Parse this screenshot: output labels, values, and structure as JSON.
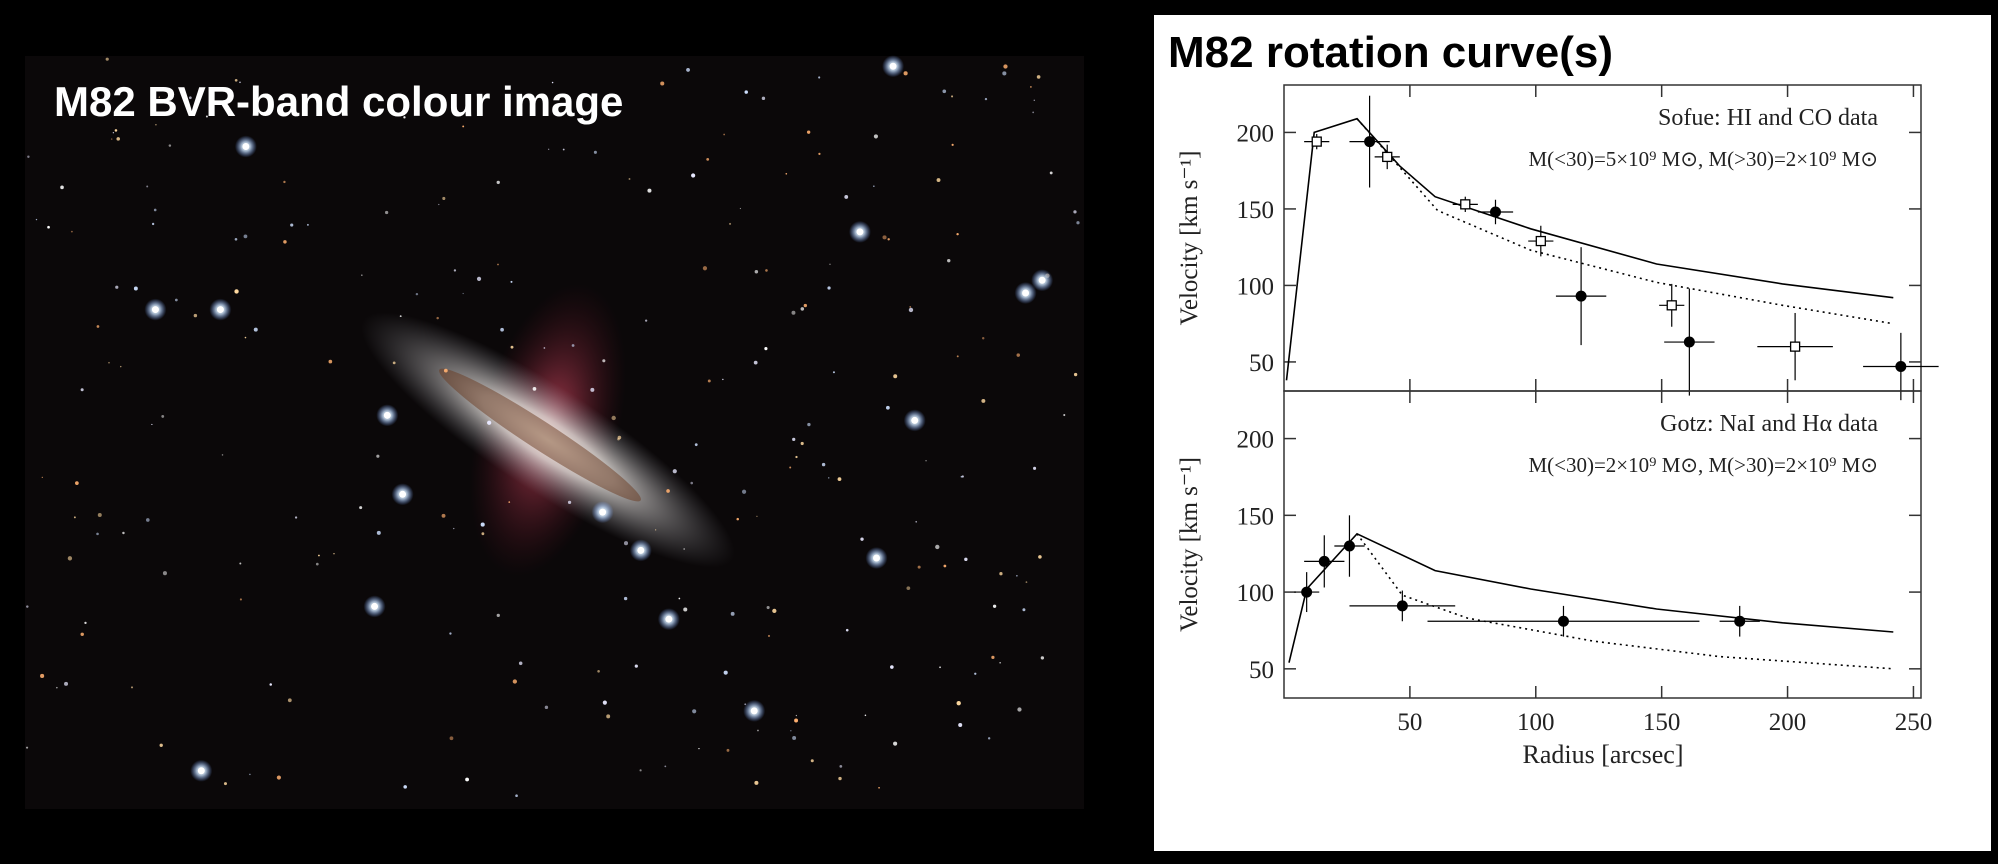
{
  "slide": {
    "image_title": "M82 BVR-band colour image",
    "title": "M82 rotation curve(s)"
  },
  "chart_data": [
    {
      "type": "scatter",
      "annotations": [
        "Sofue: HI and CO data",
        "M(<30)=5×10⁹ M⊙, M(>30)=2×10⁹ M⊙"
      ],
      "ylabel": "Velocity [km s⁻¹]",
      "xlim": [
        0,
        253
      ],
      "ylim": [
        31,
        231
      ],
      "xticks": [
        50,
        100,
        150,
        200,
        250
      ],
      "yticks": [
        50,
        100,
        150,
        200
      ],
      "series": [
        {
          "marker": "square-open",
          "color": "#000",
          "x": [
            13,
            41,
            72,
            102,
            154,
            203
          ],
          "xerr": [
            5,
            5,
            5,
            5,
            5,
            15
          ],
          "values": [
            194,
            184,
            153,
            129,
            87,
            60
          ],
          "yerr": [
            5,
            8,
            5,
            10,
            14,
            22
          ]
        },
        {
          "marker": "circle",
          "color": "#000",
          "x": [
            34,
            84,
            118,
            161,
            245
          ],
          "xerr": [
            8,
            7,
            10,
            10,
            15
          ],
          "values": [
            194,
            148,
            93,
            63,
            47
          ],
          "yerr": [
            30,
            8,
            32,
            35,
            22
          ]
        }
      ],
      "models": [
        {
          "style": "solid",
          "color": "#000",
          "x": [
            1,
            12,
            29,
            46,
            60,
            98,
            148,
            198,
            242
          ],
          "values": [
            38,
            200,
            209,
            178,
            158,
            137,
            114,
            101,
            92
          ]
        },
        {
          "style": "dotted",
          "color": "#000",
          "x": [
            29,
            61,
            98,
            148,
            198,
            242
          ],
          "values": [
            209,
            149,
            123,
            102,
            87,
            75
          ]
        }
      ]
    },
    {
      "type": "scatter",
      "annotations": [
        "Gotz: NaI and Hα  data",
        "M(<30)=2×10⁹ M⊙, M(>30)=2×10⁹ M⊙"
      ],
      "ylabel": "Velocity [km s⁻¹]",
      "xlabel": "Radius [arcsec]",
      "xlim": [
        0,
        253
      ],
      "ylim": [
        31,
        231
      ],
      "xticks": [
        50,
        100,
        150,
        200,
        250
      ],
      "yticks": [
        50,
        100,
        150,
        200
      ],
      "series": [
        {
          "marker": "circle",
          "color": "#000",
          "x": [
            9,
            16,
            26,
            47,
            111,
            181
          ],
          "xerr": [
            5,
            8,
            6,
            21,
            54,
            8
          ],
          "values": [
            100,
            120,
            130,
            91,
            81,
            81
          ],
          "yerr": [
            13,
            17,
            20,
            10,
            10,
            10
          ]
        }
      ],
      "models": [
        {
          "style": "solid",
          "color": "#000",
          "x": [
            2,
            9,
            29,
            60,
            98,
            148,
            198,
            242
          ],
          "values": [
            54,
            102,
            138,
            114,
            102,
            89,
            80,
            74
          ]
        },
        {
          "style": "dotted",
          "color": "#000",
          "x": [
            29,
            47,
            73,
            123,
            173,
            242
          ],
          "values": [
            138,
            98,
            83,
            68,
            58,
            50
          ]
        }
      ]
    }
  ]
}
